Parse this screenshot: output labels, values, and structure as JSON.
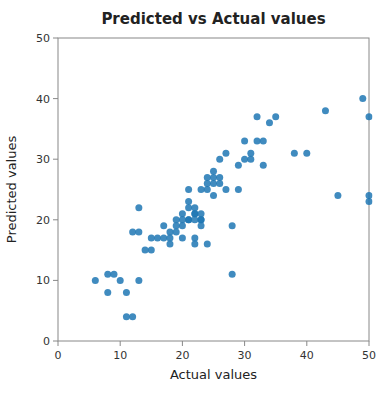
{
  "chart_data": {
    "type": "scatter",
    "title": "Predicted vs Actual values",
    "xlabel": "Actual values",
    "ylabel": "Predicted values",
    "color": "#1f77b4",
    "x": [
      6,
      8,
      8,
      9,
      10,
      11,
      11,
      12,
      12,
      13,
      13,
      13,
      14,
      15,
      15,
      16,
      17,
      17,
      18,
      18,
      18,
      19,
      19,
      19,
      20,
      20,
      20,
      20,
      21,
      21,
      21,
      21,
      21,
      22,
      22,
      22,
      22,
      22,
      22,
      23,
      23,
      23,
      23,
      23,
      24,
      24,
      24,
      24,
      25,
      25,
      25,
      25,
      26,
      26,
      26,
      27,
      27,
      28,
      28,
      29,
      29,
      30,
      30,
      31,
      31,
      32,
      32,
      33,
      33,
      34,
      35,
      38,
      40,
      43,
      45,
      49,
      50,
      50,
      50
    ],
    "values": [
      10,
      11,
      8,
      11,
      10,
      8,
      4,
      4,
      18,
      22,
      10,
      18,
      15,
      15,
      17,
      17,
      19,
      17,
      18,
      17,
      16,
      19,
      20,
      18,
      21,
      20,
      17,
      19,
      20,
      20,
      22,
      23,
      25,
      21,
      21,
      22,
      20,
      17,
      16,
      20,
      21,
      20,
      25,
      19,
      25,
      27,
      26,
      16,
      28,
      27,
      26,
      24,
      27,
      30,
      26,
      31,
      25,
      19,
      11,
      29,
      25,
      33,
      30,
      30,
      31,
      33,
      37,
      33,
      29,
      36,
      37,
      31,
      31,
      38,
      24,
      40,
      37,
      24,
      23
    ],
    "xlim": [
      0,
      50
    ],
    "ylim": [
      0,
      50
    ],
    "xticks": [
      0,
      10,
      20,
      30,
      40,
      50
    ],
    "yticks": [
      0,
      10,
      20,
      30,
      40,
      50
    ],
    "grid": false
  }
}
